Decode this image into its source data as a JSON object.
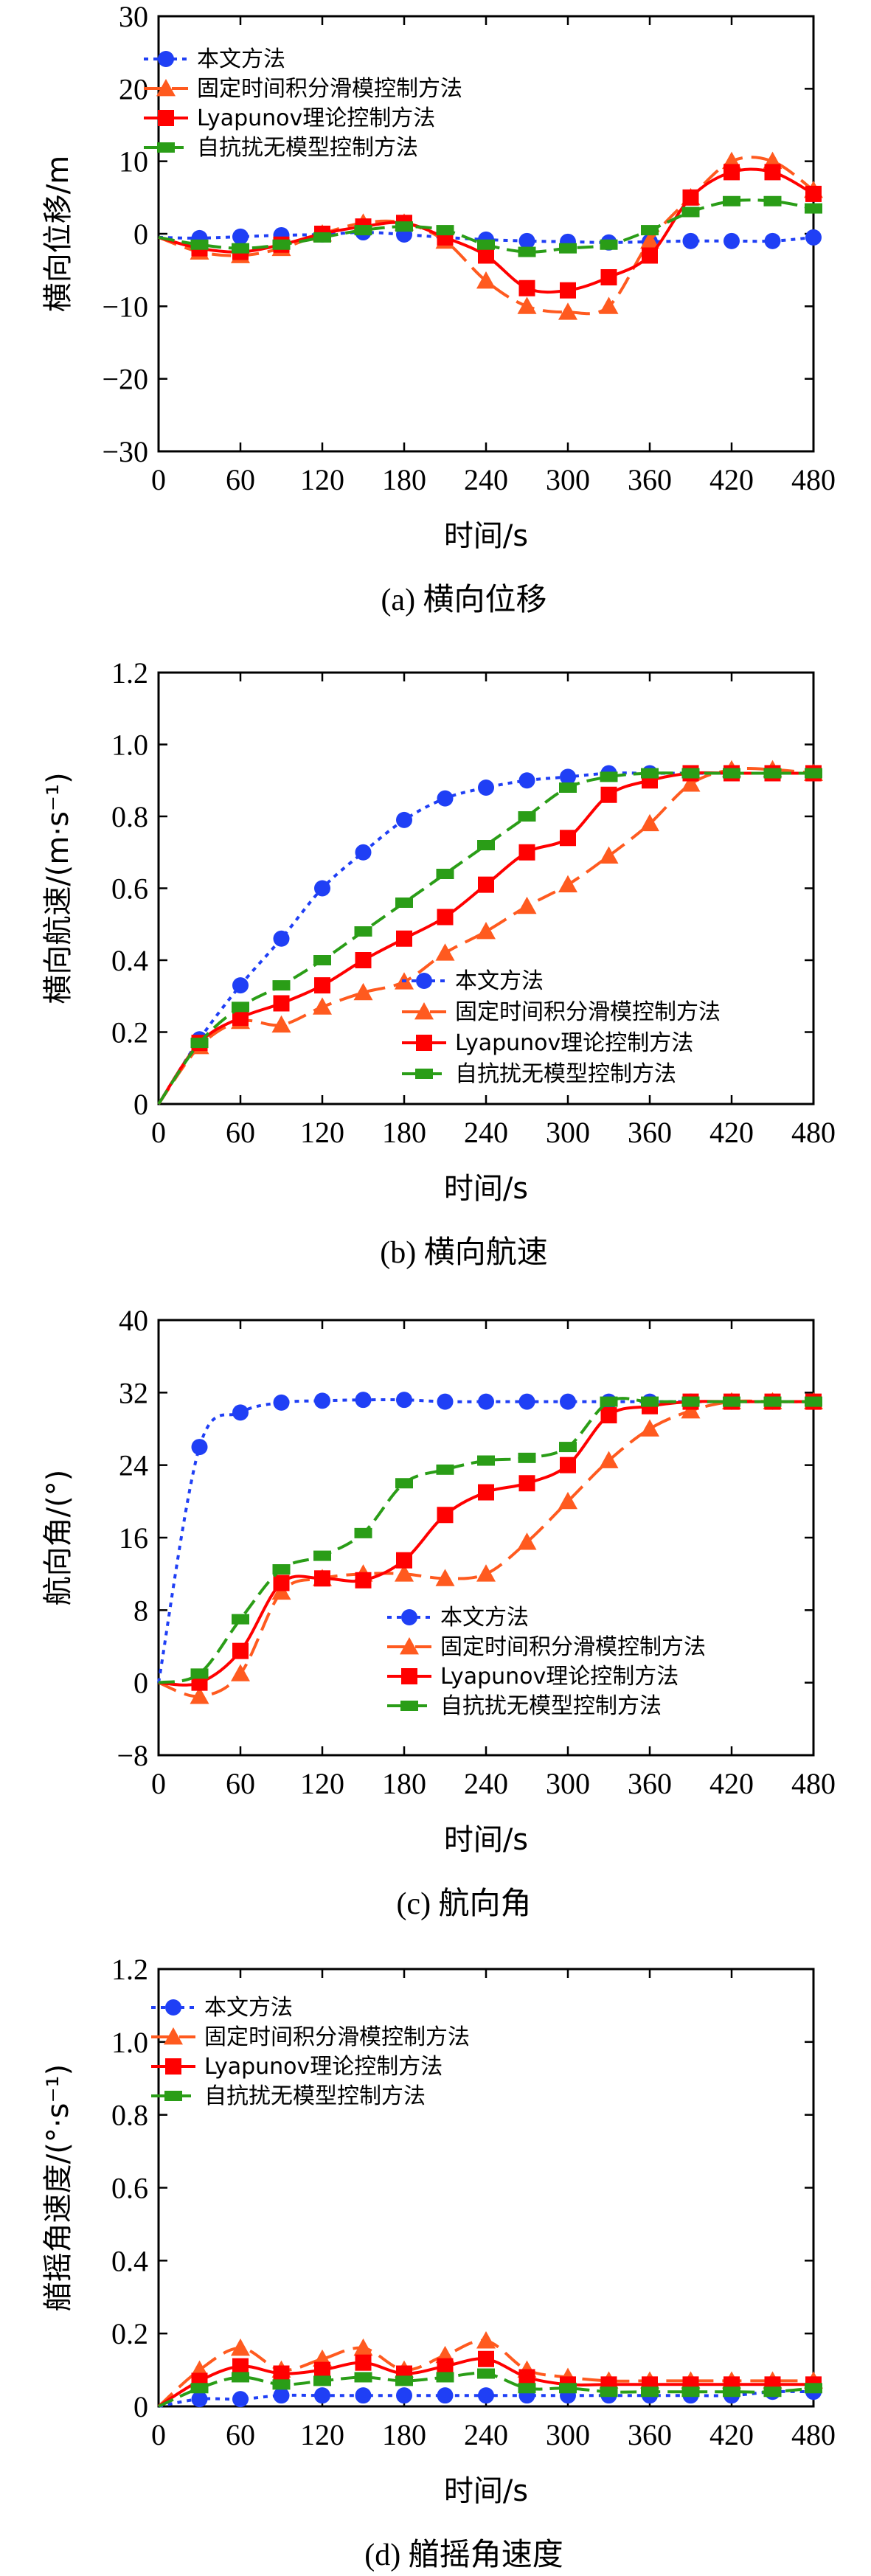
{
  "series_legend": [
    "本文方法",
    "固定时间积分滑模控制方法",
    "Lyapunov理论控制方法",
    "自抗扰无模型控制方法"
  ],
  "colors": {
    "method_proposed": "#1f3ff5",
    "method_fixed_time": "#ff5a1f",
    "method_lyapunov": "#ff0000",
    "method_adrc": "#2a9d17"
  },
  "chart_data": [
    {
      "type": "line",
      "caption": "(a) 横向位移",
      "xlabel": "时间/s",
      "ylabel": "横向位移/m",
      "xlim": [
        0,
        480
      ],
      "ylim": [
        -30,
        30
      ],
      "xticks": [
        0,
        60,
        120,
        180,
        240,
        300,
        360,
        420,
        480
      ],
      "yticks": [
        -30,
        -20,
        -10,
        0,
        10,
        20,
        30
      ],
      "legend_position": "top-left",
      "x": [
        0,
        30,
        60,
        90,
        120,
        150,
        180,
        210,
        240,
        270,
        300,
        330,
        360,
        390,
        420,
        450,
        480
      ],
      "series": [
        {
          "name": "本文方法",
          "values": [
            -0.5,
            -0.6,
            -0.4,
            -0.2,
            -0.1,
            0.2,
            -0.1,
            -0.5,
            -0.8,
            -1.0,
            -1.1,
            -1.2,
            -1.1,
            -1.0,
            -1.0,
            -1.0,
            -0.5
          ]
        },
        {
          "name": "固定时间积分滑模控制方法",
          "values": [
            -0.5,
            -2.5,
            -3.0,
            -2.0,
            0.0,
            1.5,
            1.5,
            -1.0,
            -6.5,
            -10.0,
            -10.8,
            -10.0,
            -1.0,
            5.0,
            10.0,
            10.0,
            6.0
          ]
        },
        {
          "name": "Lyapunov理论控制方法",
          "values": [
            -0.5,
            -2.0,
            -2.5,
            -1.5,
            0.0,
            1.0,
            1.5,
            -0.5,
            -3.0,
            -7.5,
            -7.8,
            -6.0,
            -3.0,
            5.0,
            8.5,
            8.5,
            5.5
          ]
        },
        {
          "name": "自抗扰无模型控制方法",
          "values": [
            -0.5,
            -1.5,
            -2.0,
            -1.5,
            -0.5,
            0.5,
            1.0,
            0.5,
            -1.5,
            -2.5,
            -2.0,
            -1.5,
            0.5,
            3.0,
            4.5,
            4.5,
            3.5
          ]
        }
      ]
    },
    {
      "type": "line",
      "caption": "(b) 横向航速",
      "xlabel": "时间/s",
      "ylabel": "横向航速/(m·s⁻¹)",
      "xlim": [
        0,
        480
      ],
      "ylim": [
        0,
        1.2
      ],
      "xticks": [
        0,
        60,
        120,
        180,
        240,
        300,
        360,
        420,
        480
      ],
      "yticks": [
        0,
        0.2,
        0.4,
        0.6,
        0.8,
        1.0,
        1.2
      ],
      "legend_position": "bottom-right",
      "x": [
        0,
        30,
        60,
        90,
        120,
        150,
        180,
        210,
        240,
        270,
        300,
        330,
        360,
        390,
        420,
        450,
        480
      ],
      "series": [
        {
          "name": "本文方法",
          "values": [
            0.0,
            0.18,
            0.33,
            0.46,
            0.6,
            0.7,
            0.79,
            0.85,
            0.88,
            0.9,
            0.91,
            0.92,
            0.92,
            0.92,
            0.92,
            0.92,
            0.92
          ]
        },
        {
          "name": "固定时间积分滑模控制方法",
          "values": [
            0.0,
            0.16,
            0.23,
            0.22,
            0.27,
            0.31,
            0.34,
            0.42,
            0.48,
            0.55,
            0.61,
            0.69,
            0.78,
            0.89,
            0.93,
            0.93,
            0.92
          ]
        },
        {
          "name": "Lyapunov理论控制方法",
          "values": [
            0.0,
            0.17,
            0.24,
            0.28,
            0.33,
            0.4,
            0.46,
            0.52,
            0.61,
            0.7,
            0.74,
            0.86,
            0.9,
            0.92,
            0.92,
            0.92,
            0.92
          ]
        },
        {
          "name": "自抗扰无模型控制方法",
          "values": [
            0.0,
            0.17,
            0.27,
            0.33,
            0.4,
            0.48,
            0.56,
            0.64,
            0.72,
            0.8,
            0.88,
            0.91,
            0.92,
            0.92,
            0.92,
            0.92,
            0.92
          ]
        }
      ]
    },
    {
      "type": "line",
      "caption": "(c) 航向角",
      "xlabel": "时间/s",
      "ylabel": "航向角/(°)",
      "xlim": [
        0,
        480
      ],
      "ylim": [
        -8,
        40
      ],
      "xticks": [
        0,
        60,
        120,
        180,
        240,
        300,
        360,
        420,
        480
      ],
      "yticks": [
        -8,
        0,
        8,
        16,
        24,
        32,
        40
      ],
      "legend_position": "bottom-right",
      "x": [
        0,
        30,
        60,
        90,
        120,
        150,
        180,
        210,
        240,
        270,
        300,
        330,
        360,
        390,
        420,
        450,
        480
      ],
      "series": [
        {
          "name": "本文方法",
          "values": [
            0.0,
            26.0,
            29.8,
            30.9,
            31.1,
            31.2,
            31.2,
            31.0,
            31.0,
            31.0,
            31.0,
            31.0,
            31.0,
            31.0,
            31.0,
            31.0,
            31.0
          ]
        },
        {
          "name": "固定时间积分滑模控制方法",
          "values": [
            0.0,
            -1.5,
            1.0,
            10.0,
            11.5,
            12.0,
            12.0,
            11.5,
            12.0,
            15.5,
            20.0,
            24.5,
            28.0,
            30.0,
            31.0,
            31.0,
            31.0
          ]
        },
        {
          "name": "Lyapunov理论控制方法",
          "values": [
            0.0,
            0.0,
            3.5,
            11.0,
            11.5,
            11.3,
            13.5,
            18.5,
            21.0,
            22.0,
            24.0,
            29.5,
            30.5,
            31.0,
            31.0,
            31.0,
            31.0
          ]
        },
        {
          "name": "自抗扰无模型控制方法",
          "values": [
            0.0,
            1.0,
            7.0,
            12.5,
            14.0,
            16.5,
            22.0,
            23.5,
            24.5,
            24.8,
            26.0,
            31.0,
            31.0,
            31.0,
            31.0,
            31.0,
            31.0
          ]
        }
      ]
    },
    {
      "type": "line",
      "caption": "(d) 艏摇角速度",
      "xlabel": "时间/s",
      "ylabel": "艏摇角速度/(°·s⁻¹)",
      "xlim": [
        0,
        480
      ],
      "ylim": [
        0,
        1.2
      ],
      "xticks": [
        0,
        60,
        120,
        180,
        240,
        300,
        360,
        420,
        480
      ],
      "yticks": [
        0,
        0.2,
        0.4,
        0.6,
        0.8,
        1.0,
        1.2
      ],
      "legend_position": "top-left",
      "x": [
        0,
        30,
        60,
        90,
        120,
        150,
        180,
        210,
        240,
        270,
        300,
        330,
        360,
        390,
        420,
        450,
        480
      ],
      "series": [
        {
          "name": "本文方法",
          "values": [
            0.0,
            0.02,
            0.02,
            0.03,
            0.03,
            0.03,
            0.03,
            0.03,
            0.03,
            0.03,
            0.03,
            0.03,
            0.03,
            0.03,
            0.03,
            0.04,
            0.04
          ]
        },
        {
          "name": "固定时间积分滑模控制方法",
          "values": [
            0.0,
            0.1,
            0.16,
            0.1,
            0.13,
            0.16,
            0.1,
            0.14,
            0.18,
            0.1,
            0.08,
            0.07,
            0.07,
            0.07,
            0.07,
            0.07,
            0.07
          ]
        },
        {
          "name": "Lyapunov理论控制方法",
          "values": [
            0.0,
            0.07,
            0.11,
            0.09,
            0.1,
            0.12,
            0.09,
            0.11,
            0.13,
            0.08,
            0.06,
            0.06,
            0.06,
            0.06,
            0.06,
            0.06,
            0.06
          ]
        },
        {
          "name": "自抗扰无模型控制方法",
          "values": [
            0.0,
            0.05,
            0.08,
            0.06,
            0.07,
            0.08,
            0.07,
            0.08,
            0.09,
            0.05,
            0.05,
            0.04,
            0.04,
            0.04,
            0.04,
            0.04,
            0.05
          ]
        }
      ]
    }
  ]
}
